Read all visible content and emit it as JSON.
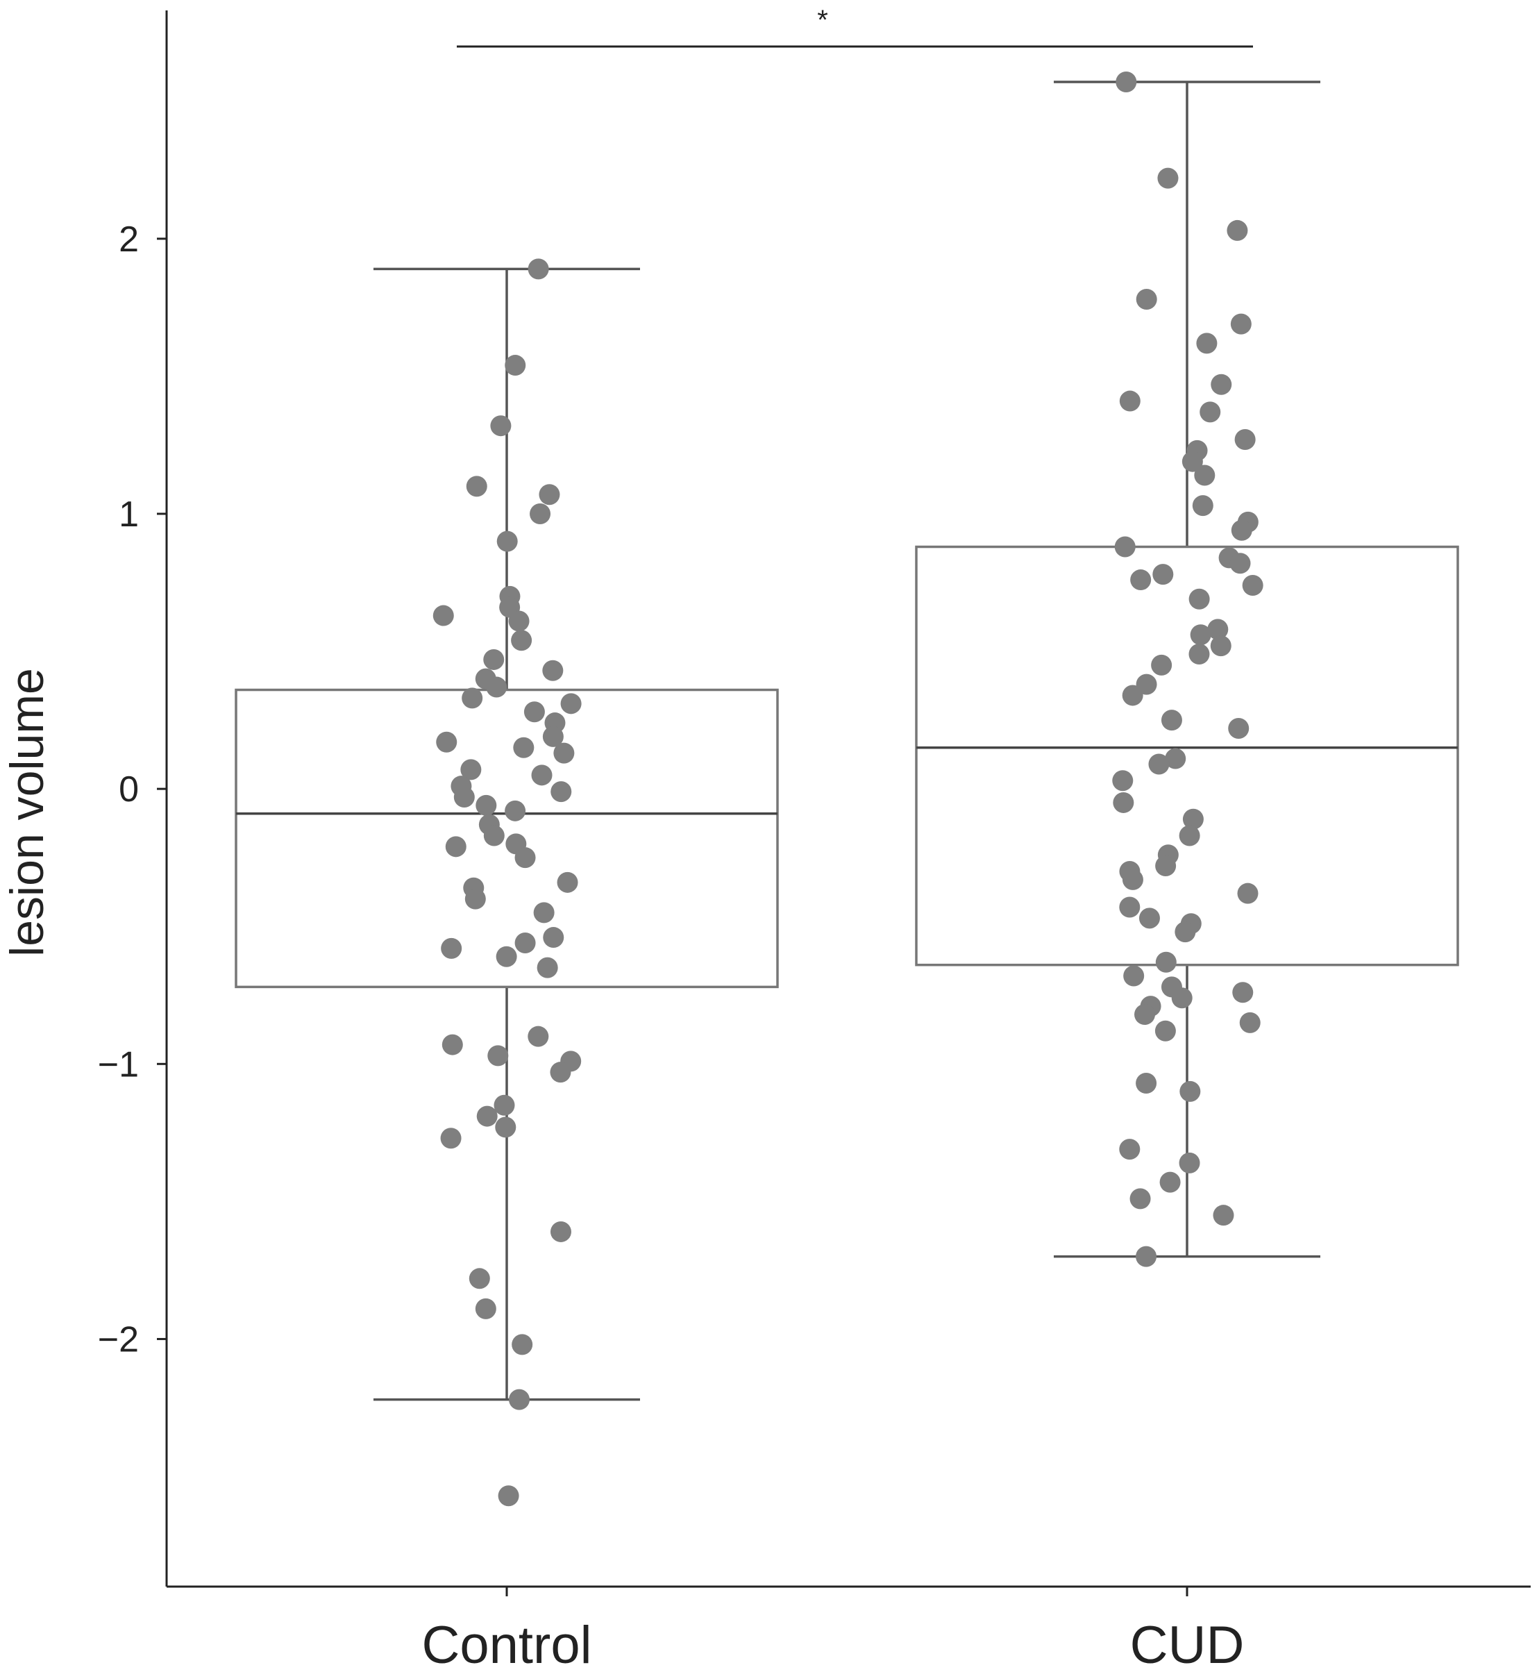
{
  "chart_data": {
    "type": "box",
    "title": "",
    "xlabel": "",
    "ylabel": "lesion volume",
    "ylim": [
      -2.9,
      2.83
    ],
    "yticks": [
      -2,
      -1,
      0,
      1,
      2
    ],
    "ytick_labels": [
      "−2",
      "−1",
      "0",
      "1",
      "2"
    ],
    "categories": [
      "Control",
      "CUD"
    ],
    "grid": false,
    "colors": {
      "points": "#7f7f7f",
      "box_edge": "#777777",
      "lines": "#444444",
      "axis": "#222222"
    },
    "boxes": [
      {
        "category": "Control",
        "whisker_low": -2.22,
        "q1": -0.72,
        "median": -0.09,
        "q3": 0.36,
        "whisker_high": 1.89
      },
      {
        "category": "CUD",
        "whisker_low": -1.7,
        "q1": -0.64,
        "median": 0.15,
        "q3": 0.88,
        "whisker_high": 2.57
      }
    ],
    "points": [
      {
        "category": "Control",
        "values": [
          1.89,
          1.54,
          1.32,
          1.1,
          1.07,
          1.0,
          0.9,
          0.7,
          0.66,
          0.63,
          0.61,
          0.54,
          0.47,
          0.43,
          0.4,
          0.37,
          0.33,
          0.31,
          0.28,
          0.24,
          0.19,
          0.17,
          0.15,
          0.13,
          0.07,
          0.05,
          0.01,
          -0.01,
          -0.03,
          -0.06,
          -0.08,
          -0.13,
          -0.17,
          -0.2,
          -0.21,
          -0.25,
          -0.34,
          -0.36,
          -0.4,
          -0.45,
          -0.54,
          -0.56,
          -0.58,
          -0.61,
          -0.65,
          -0.9,
          -0.93,
          -0.97,
          -0.99,
          -1.03,
          -1.15,
          -1.19,
          -1.23,
          -1.27,
          -1.61,
          -1.78,
          -1.89,
          -2.02,
          -2.22,
          -2.57
        ]
      },
      {
        "category": "CUD",
        "values": [
          2.57,
          2.22,
          2.03,
          1.78,
          1.69,
          1.62,
          1.47,
          1.41,
          1.37,
          1.27,
          1.23,
          1.19,
          1.14,
          1.03,
          0.97,
          0.94,
          0.88,
          0.84,
          0.82,
          0.78,
          0.76,
          0.74,
          0.69,
          0.58,
          0.56,
          0.52,
          0.49,
          0.45,
          0.38,
          0.34,
          0.25,
          0.22,
          0.11,
          0.09,
          0.03,
          -0.05,
          -0.11,
          -0.17,
          -0.24,
          -0.28,
          -0.3,
          -0.33,
          -0.38,
          -0.43,
          -0.47,
          -0.49,
          -0.52,
          -0.63,
          -0.68,
          -0.72,
          -0.74,
          -0.76,
          -0.79,
          -0.82,
          -0.85,
          -0.88,
          -1.07,
          -1.1,
          -1.31,
          -1.36,
          -1.43,
          -1.49,
          -1.55,
          -1.7
        ]
      }
    ],
    "significance": {
      "label": "*",
      "between": [
        "Control",
        "CUD"
      ]
    }
  }
}
